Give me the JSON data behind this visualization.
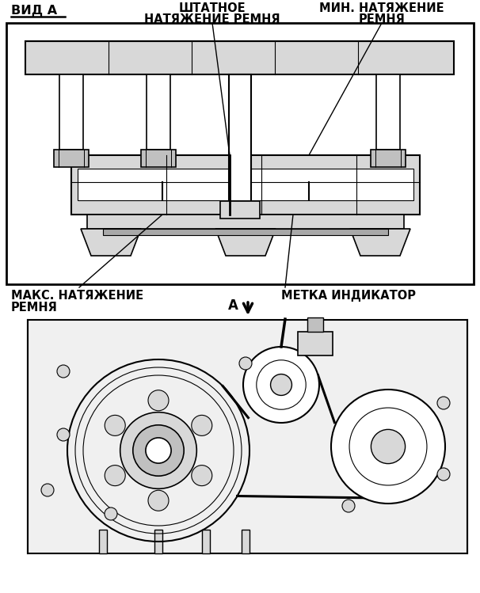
{
  "bg_color": "#ffffff",
  "title_text": "ВИД А",
  "label1_line1": "ШТАТНОЕ",
  "label1_line2": "НАТЯЖЕНИЕ РЕМНЯ",
  "label2_line1": "МИН. НАТЯЖЕНИЕ",
  "label2_line2": "РЕМНЯ",
  "label3_line1": "МАКС. НАТЯЖЕНИЕ",
  "label3_line2": "РЕМНЯ",
  "label4": "МЕТКА ИНДИКАТОР",
  "label_a": "А",
  "fs_label": 10.5,
  "fs_title": 11.5,
  "lc": "#000000",
  "gray1": "#c0c0c0",
  "gray2": "#d8d8d8",
  "gray3": "#a8a8a8",
  "white": "#ffffff"
}
